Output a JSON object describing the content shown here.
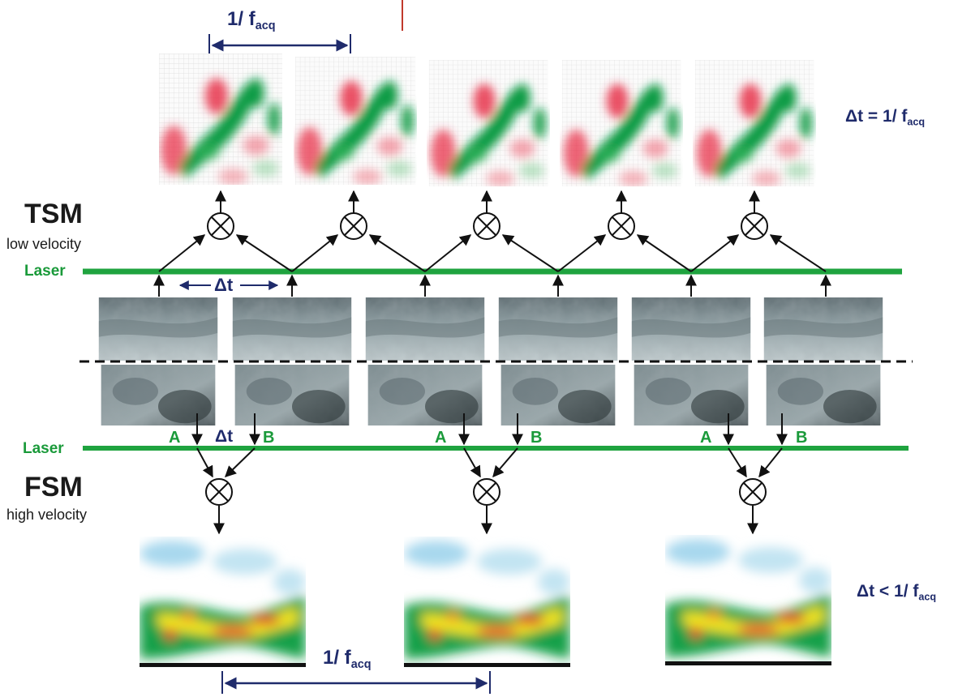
{
  "labels": {
    "tsm_title": "TSM",
    "tsm_sub": "low velocity",
    "fsm_title": "FSM",
    "fsm_sub": "high velocity",
    "laser": "Laser",
    "laser2": "Laser",
    "dt": "Δt",
    "dt_fsm": "Δt",
    "a": "A",
    "b": "B",
    "top_period_main": "1/ f",
    "top_period_sub": "acq",
    "bottom_period_main": "1/ f",
    "bottom_period_sub": "acq",
    "eq_tsm_main": "Δt = 1/ f",
    "eq_tsm_sub": "acq",
    "eq_fsm_main": "Δt < 1/ f",
    "eq_fsm_sub": "acq",
    "multiply": "⊗"
  },
  "colors": {
    "laser_green": "#1fa33f",
    "navy": "#1f2b6b",
    "red_marker": "#c0392b",
    "field_red": "#e0283c",
    "field_green": "#17a04a",
    "field_blue": "#9fd3ea",
    "field_yellow": "#f2e21a"
  },
  "icons": {
    "combine": "circle-times-icon",
    "arrow": "arrowhead-icon"
  }
}
